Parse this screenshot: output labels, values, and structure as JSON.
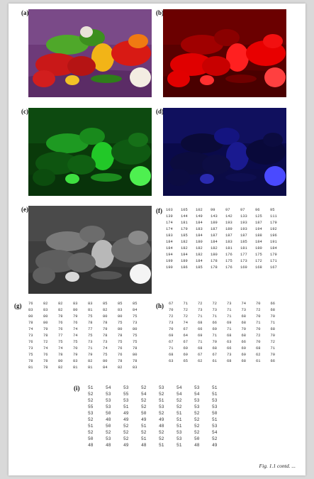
{
  "labels": {
    "a": "(a)",
    "b": "(b)",
    "c": "(c)",
    "d": "(d)",
    "e": "(e)",
    "f": "(f)",
    "g": "(g)",
    "h": "(h)",
    "i": "(i)"
  },
  "panels": {
    "a": {
      "description": "color photograph of peppers and garlic",
      "tint": "#7a3d87"
    },
    "b": {
      "description": "red channel image",
      "tint": "#ff1a1a"
    },
    "c": {
      "description": "green channel image",
      "tint": "#16c91e"
    },
    "d": {
      "description": "blue channel image",
      "tint": "#2a2aff"
    },
    "e": {
      "description": "grayscale image",
      "tint": "#bdbdbd"
    }
  },
  "matrix_f": [
    [
      "103",
      "105",
      "102",
      "99",
      "97",
      "97",
      "96",
      "95"
    ],
    [
      "139",
      "144",
      "149",
      "143",
      "142",
      "133",
      "125",
      "111"
    ],
    [
      "174",
      "181",
      "184",
      "189",
      "193",
      "193",
      "187",
      "179"
    ],
    [
      "174",
      "179",
      "183",
      "187",
      "189",
      "193",
      "194",
      "192"
    ],
    [
      "183",
      "185",
      "184",
      "187",
      "187",
      "187",
      "188",
      "196"
    ],
    [
      "184",
      "182",
      "180",
      "184",
      "183",
      "185",
      "184",
      "191"
    ],
    [
      "184",
      "182",
      "182",
      "182",
      "181",
      "181",
      "180",
      "184"
    ],
    [
      "194",
      "184",
      "182",
      "180",
      "176",
      "177",
      "175",
      "179"
    ],
    [
      "199",
      "189",
      "184",
      "178",
      "175",
      "173",
      "172",
      "171"
    ],
    [
      "190",
      "186",
      "185",
      "178",
      "176",
      "169",
      "168",
      "167"
    ]
  ],
  "matrix_g": [
    [
      "76",
      "82",
      "82",
      "83",
      "83",
      "85",
      "85",
      "85"
    ],
    [
      "83",
      "83",
      "82",
      "80",
      "81",
      "82",
      "83",
      "84"
    ],
    [
      "80",
      "80",
      "78",
      "79",
      "75",
      "80",
      "80",
      "75"
    ],
    [
      "78",
      "80",
      "76",
      "76",
      "78",
      "78",
      "75",
      "73"
    ],
    [
      "74",
      "79",
      "76",
      "74",
      "77",
      "79",
      "80",
      "80"
    ],
    [
      "73",
      "78",
      "77",
      "74",
      "75",
      "78",
      "78",
      "75"
    ],
    [
      "76",
      "72",
      "75",
      "75",
      "73",
      "73",
      "75",
      "75"
    ],
    [
      "73",
      "74",
      "74",
      "70",
      "71",
      "74",
      "76",
      "78"
    ],
    [
      "75",
      "76",
      "78",
      "79",
      "79",
      "75",
      "76",
      "80"
    ],
    [
      "78",
      "78",
      "80",
      "83",
      "82",
      "80",
      "78",
      "78"
    ],
    [
      "81",
      "78",
      "82",
      "81",
      "81",
      "84",
      "82",
      "83"
    ]
  ],
  "matrix_h": [
    [
      "67",
      "71",
      "72",
      "72",
      "73",
      "74",
      "70",
      "66"
    ],
    [
      "70",
      "72",
      "73",
      "73",
      "71",
      "73",
      "72",
      "68"
    ],
    [
      "72",
      "72",
      "71",
      "71",
      "71",
      "68",
      "70",
      "70"
    ],
    [
      "73",
      "74",
      "68",
      "66",
      "69",
      "68",
      "71",
      "71"
    ],
    [
      "70",
      "67",
      "66",
      "69",
      "71",
      "70",
      "70",
      "68"
    ],
    [
      "69",
      "64",
      "69",
      "71",
      "68",
      "68",
      "72",
      "70"
    ],
    [
      "67",
      "67",
      "71",
      "70",
      "63",
      "66",
      "70",
      "72"
    ],
    [
      "71",
      "69",
      "68",
      "68",
      "66",
      "69",
      "68",
      "71"
    ],
    [
      "68",
      "69",
      "67",
      "67",
      "73",
      "69",
      "62",
      "70"
    ],
    [
      "63",
      "65",
      "62",
      "61",
      "68",
      "68",
      "61",
      "66"
    ]
  ],
  "matrix_i": [
    [
      "51",
      "54",
      "53",
      "52",
      "53",
      "54",
      "53",
      "51"
    ],
    [
      "52",
      "53",
      "55",
      "54",
      "52",
      "54",
      "54",
      "51"
    ],
    [
      "52",
      "53",
      "53",
      "52",
      "51",
      "52",
      "53",
      "53"
    ],
    [
      "55",
      "53",
      "51",
      "52",
      "53",
      "52",
      "53",
      "53"
    ],
    [
      "53",
      "50",
      "49",
      "50",
      "52",
      "51",
      "52",
      "50"
    ],
    [
      "52",
      "48",
      "49",
      "49",
      "49",
      "51",
      "52",
      "51"
    ],
    [
      "51",
      "50",
      "52",
      "51",
      "48",
      "51",
      "52",
      "53"
    ],
    [
      "52",
      "52",
      "52",
      "52",
      "52",
      "53",
      "52",
      "54"
    ],
    [
      "50",
      "53",
      "52",
      "51",
      "52",
      "53",
      "50",
      "52"
    ],
    [
      "48",
      "48",
      "49",
      "48",
      "51",
      "51",
      "48",
      "49"
    ]
  ],
  "caption": "Fig. 1.1 contd. ..."
}
